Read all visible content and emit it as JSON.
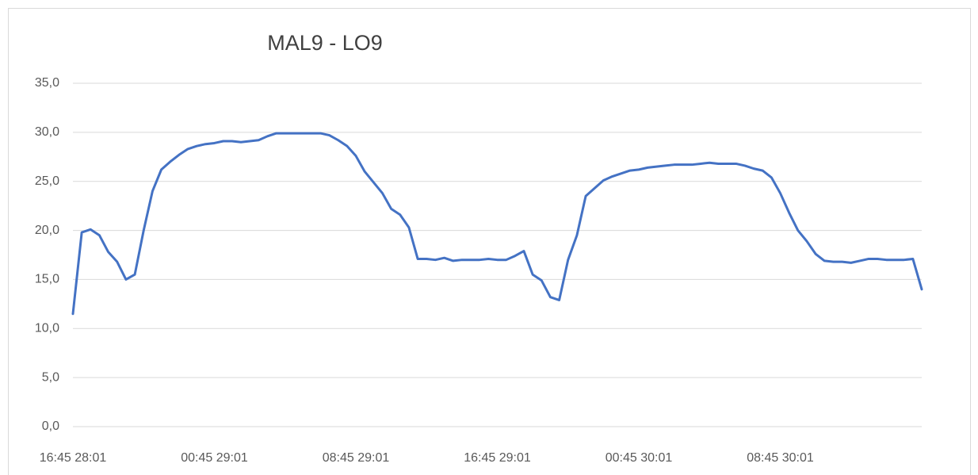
{
  "chart_data": {
    "type": "line",
    "title": "MAL9 - LO9",
    "categories": [
      "16:45 28:01",
      null,
      null,
      null,
      null,
      null,
      null,
      null,
      null,
      null,
      null,
      null,
      null,
      null,
      null,
      null,
      "00:45 29:01",
      null,
      null,
      null,
      null,
      null,
      null,
      null,
      null,
      null,
      null,
      null,
      null,
      null,
      null,
      null,
      "08:45 29:01",
      null,
      null,
      null,
      null,
      null,
      null,
      null,
      null,
      null,
      null,
      null,
      null,
      null,
      null,
      null,
      "16:45 29:01",
      null,
      null,
      null,
      null,
      null,
      null,
      null,
      null,
      null,
      null,
      null,
      null,
      null,
      null,
      null,
      "00:45 30:01",
      null,
      null,
      null,
      null,
      null,
      null,
      null,
      null,
      null,
      null,
      null,
      null,
      null,
      null,
      null,
      "08:45 30:01",
      null,
      null,
      null,
      null,
      null,
      null,
      null,
      null,
      null,
      null,
      null,
      null,
      null,
      null,
      null,
      null
    ],
    "series": [
      {
        "name": "MAL9 - LO9",
        "color": "#4472c4",
        "values": [
          11.5,
          19.8,
          20.1,
          19.5,
          17.8,
          16.8,
          15.0,
          15.5,
          20.0,
          24.0,
          26.2,
          27.0,
          27.7,
          28.3,
          28.6,
          28.8,
          28.9,
          29.1,
          29.1,
          29.0,
          29.1,
          29.2,
          29.6,
          29.9,
          29.9,
          29.9,
          29.9,
          29.9,
          29.9,
          29.7,
          29.2,
          28.6,
          27.6,
          26.0,
          24.9,
          23.8,
          22.2,
          21.6,
          20.3,
          17.1,
          17.1,
          17.0,
          17.2,
          16.9,
          17.0,
          17.0,
          17.0,
          17.1,
          17.0,
          17.0,
          17.4,
          17.9,
          15.5,
          14.9,
          13.2,
          12.9,
          17.0,
          19.5,
          23.5,
          24.3,
          25.1,
          25.5,
          25.8,
          26.1,
          26.2,
          26.4,
          26.5,
          26.6,
          26.7,
          26.7,
          26.7,
          26.8,
          26.9,
          26.8,
          26.8,
          26.8,
          26.6,
          26.3,
          26.1,
          25.4,
          23.8,
          21.8,
          20.0,
          18.9,
          17.6,
          16.9,
          16.8,
          16.8,
          16.7,
          16.9,
          17.1,
          17.1,
          17.0,
          17.0,
          17.0,
          17.1,
          14.0
        ]
      }
    ],
    "ylim": [
      0,
      35
    ],
    "yticks": [
      {
        "value": 0,
        "label": "0,0"
      },
      {
        "value": 5,
        "label": "5,0"
      },
      {
        "value": 10,
        "label": "10,0"
      },
      {
        "value": 15,
        "label": "15,0"
      },
      {
        "value": 20,
        "label": "20,0"
      },
      {
        "value": 25,
        "label": "25,0"
      },
      {
        "value": 30,
        "label": "30,0"
      },
      {
        "value": 35,
        "label": "35,0"
      }
    ],
    "grid": true
  }
}
